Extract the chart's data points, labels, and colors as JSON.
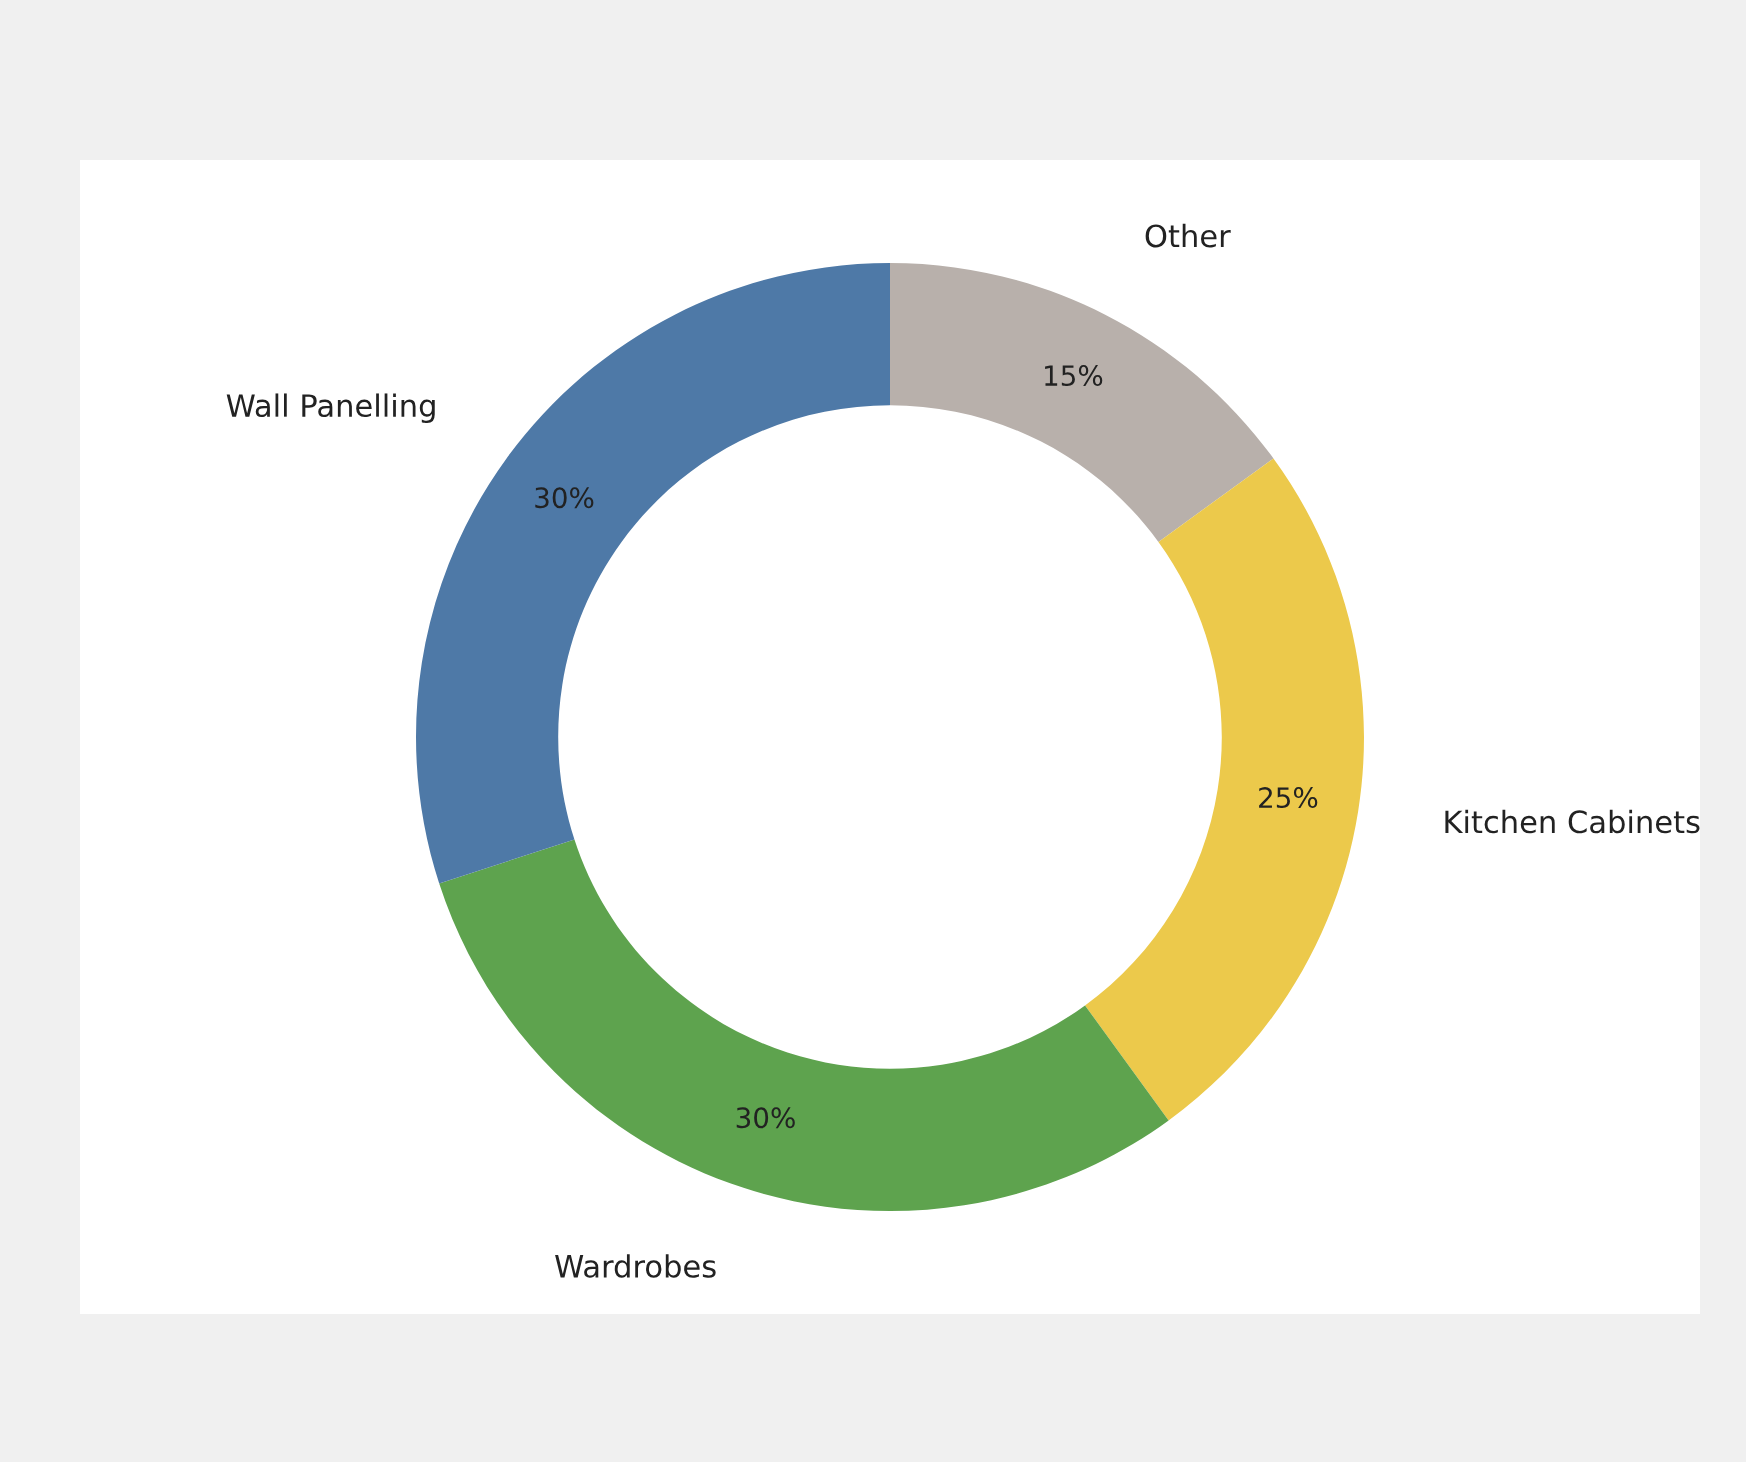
{
  "chart_data": {
    "type": "donut",
    "categories": [
      "Other",
      "Kitchen Cabinets",
      "Wardrobes",
      "Wall Panelling"
    ],
    "values": [
      15,
      25,
      30,
      30
    ],
    "colors": [
      "#b8b0ab",
      "#ecc94b",
      "#5ea34e",
      "#4e79a7"
    ],
    "value_labels": [
      "15%",
      "25%",
      "30%",
      "30%"
    ],
    "legend": false
  }
}
